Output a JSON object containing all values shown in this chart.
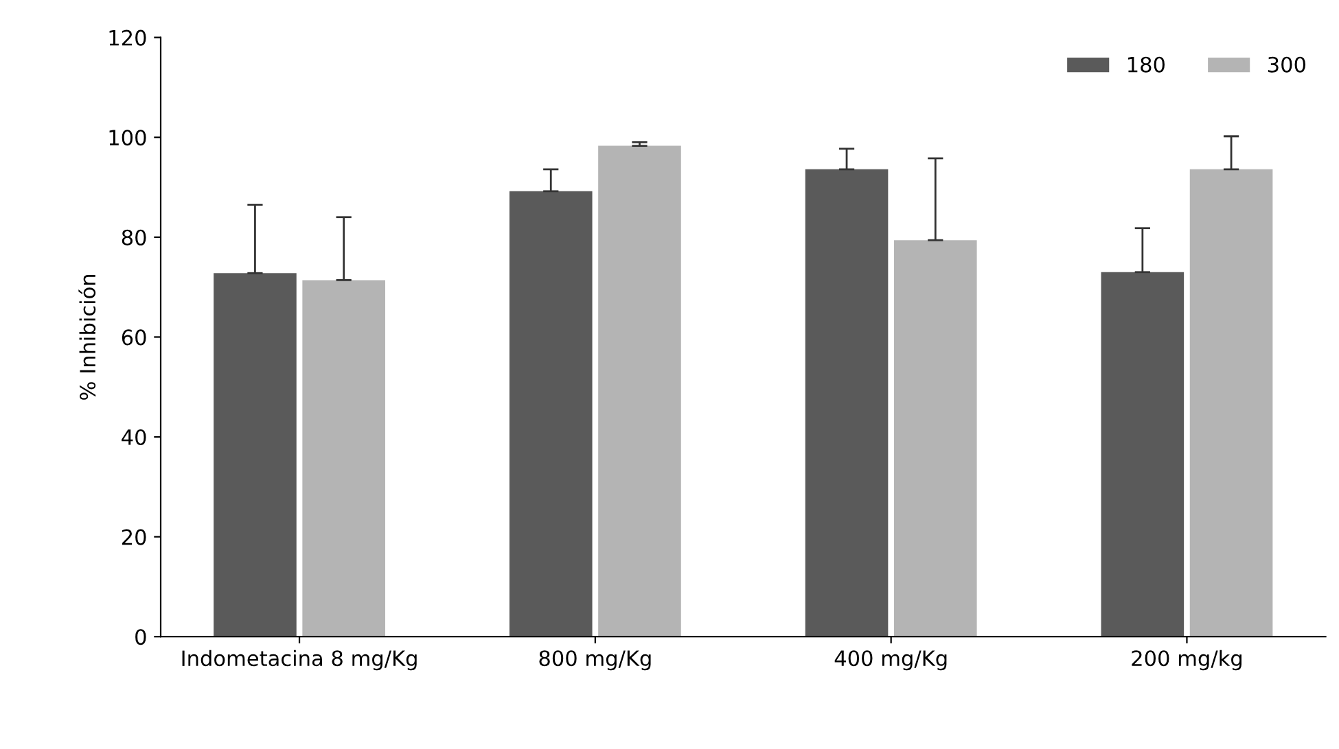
{
  "chart_data": {
    "type": "bar",
    "ylabel": "% Inhibición",
    "categories": [
      "Indometacina 8 mg/Kg",
      "800 mg/Kg",
      "400 mg/Kg",
      "200 mg/kg"
    ],
    "series": [
      {
        "name": "180",
        "color": "#5a5a5a",
        "values": [
          72.8,
          89.2,
          93.6,
          73
        ],
        "errors": [
          [
            72.8,
            86.5
          ],
          [
            89.2,
            93.6
          ],
          [
            93.6,
            97.7
          ],
          [
            73,
            81.8
          ]
        ]
      },
      {
        "name": "300",
        "color": "#b4b4b4",
        "values": [
          71.4,
          98.3,
          79.4,
          93.6
        ],
        "errors": [
          [
            71.4,
            84
          ],
          [
            98.3,
            99
          ],
          [
            79.4,
            95.8
          ],
          [
            93.6,
            100.2
          ]
        ]
      }
    ],
    "ylim": [
      0,
      120
    ],
    "yticks": [
      0,
      20,
      40,
      60,
      80,
      100,
      120
    ],
    "grid": false,
    "legend": "top right"
  }
}
